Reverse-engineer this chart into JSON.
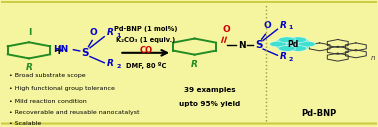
{
  "bg_color": "#f5f5a0",
  "border_color": "#cccc44",
  "green_color": "#228B22",
  "blue_color": "#0000CC",
  "red_color": "#CC0000",
  "black_color": "#000000",
  "teal_color": "#40E0D0",
  "dotted_line_x": 0.705,
  "bullet_points": [
    "Broad substrate scope",
    "High functional group tolerance",
    "Mild reaction condition",
    "Recoverable and reusable nanocatalyst",
    "Scalable"
  ],
  "conditions_line1": "Pd-BNP (1 mol%)",
  "conditions_line2": "K₂CO₃ (1 equiv.)",
  "conditions_line3": "CO",
  "conditions_line4": "DMF, 80 ºC",
  "yield_text1": "39 examples",
  "yield_text2": "upto 95% yield",
  "pd_bnp_label": "Pd-BNP",
  "pd_label": "Pd"
}
